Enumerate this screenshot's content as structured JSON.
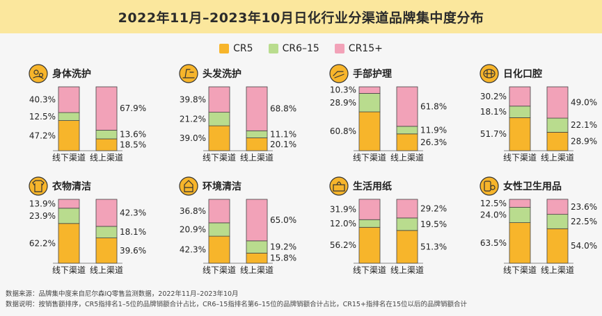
{
  "title": "2022年11月–2023年10月日化行业分渠道品牌集中度分布",
  "legend": [
    "CR5",
    "CR6–15",
    "CR15+"
  ],
  "colors": {
    "CR5": "#f7b52b",
    "CR6-15": "#b9dc8e",
    "CR15+": "#f2a2b8",
    "banner": "#fbe79d"
  },
  "chart_data": [
    {
      "type": "bar",
      "title": "身体洗护",
      "icon": "body-care-icon",
      "categories": [
        "线下渠道",
        "线上渠道"
      ],
      "series": [
        {
          "name": "CR5",
          "values": [
            47.2,
            18.5
          ]
        },
        {
          "name": "CR6–15",
          "values": [
            12.5,
            13.6
          ]
        },
        {
          "name": "CR15+",
          "values": [
            40.3,
            67.9
          ]
        }
      ]
    },
    {
      "type": "bar",
      "title": "头发洗护",
      "icon": "hair-care-icon",
      "categories": [
        "线下渠道",
        "线上渠道"
      ],
      "series": [
        {
          "name": "CR5",
          "values": [
            39.0,
            20.1
          ]
        },
        {
          "name": "CR6–15",
          "values": [
            21.2,
            11.1
          ]
        },
        {
          "name": "CR15+",
          "values": [
            39.8,
            68.8
          ]
        }
      ]
    },
    {
      "type": "bar",
      "title": "手部护理",
      "icon": "hand-care-icon",
      "categories": [
        "线下渠道",
        "线上渠道"
      ],
      "series": [
        {
          "name": "CR5",
          "values": [
            60.8,
            26.3
          ]
        },
        {
          "name": "CR6–15",
          "values": [
            28.9,
            11.9
          ]
        },
        {
          "name": "CR15+",
          "values": [
            10.3,
            61.8
          ]
        }
      ]
    },
    {
      "type": "bar",
      "title": "日化口腔",
      "icon": "oral-care-icon",
      "categories": [
        "线下渠道",
        "线上渠道"
      ],
      "series": [
        {
          "name": "CR5",
          "values": [
            51.7,
            28.9
          ]
        },
        {
          "name": "CR6–15",
          "values": [
            18.1,
            22.1
          ]
        },
        {
          "name": "CR15+",
          "values": [
            30.2,
            49.0
          ]
        }
      ]
    },
    {
      "type": "bar",
      "title": "衣物清洁",
      "icon": "laundry-icon",
      "categories": [
        "线下渠道",
        "线上渠道"
      ],
      "series": [
        {
          "name": "CR5",
          "values": [
            62.2,
            39.6
          ]
        },
        {
          "name": "CR6–15",
          "values": [
            23.9,
            18.1
          ]
        },
        {
          "name": "CR15+",
          "values": [
            13.9,
            42.3
          ]
        }
      ]
    },
    {
      "type": "bar",
      "title": "环境清洁",
      "icon": "home-cleaning-icon",
      "categories": [
        "线下渠道",
        "线上渠道"
      ],
      "series": [
        {
          "name": "CR5",
          "values": [
            42.3,
            15.8
          ]
        },
        {
          "name": "CR6–15",
          "values": [
            20.9,
            19.2
          ]
        },
        {
          "name": "CR15+",
          "values": [
            36.8,
            65.0
          ]
        }
      ]
    },
    {
      "type": "bar",
      "title": "生活用纸",
      "icon": "tissue-icon",
      "categories": [
        "线下渠道",
        "线上渠道"
      ],
      "series": [
        {
          "name": "CR5",
          "values": [
            56.2,
            51.3
          ]
        },
        {
          "name": "CR6–15",
          "values": [
            12.0,
            19.5
          ]
        },
        {
          "name": "CR15+",
          "values": [
            31.9,
            29.2
          ]
        }
      ]
    },
    {
      "type": "bar",
      "title": "女性卫生用品",
      "icon": "feminine-care-icon",
      "categories": [
        "线下渠道",
        "线上渠道"
      ],
      "series": [
        {
          "name": "CR5",
          "values": [
            63.5,
            54.0
          ]
        },
        {
          "name": "CR6–15",
          "values": [
            24.0,
            22.5
          ]
        },
        {
          "name": "CR15+",
          "values": [
            12.5,
            23.6
          ]
        }
      ]
    }
  ],
  "footer": {
    "source": "数据来源：品牌集中度来自尼尔森IQ零售监测数据，2022年11月–2023年10月",
    "note": "数据说明：按销售额排序，CR5指排名1–5位的品牌销额合计占比，CR6–15指排名第6–15位的品牌销额合计占比，CR15+指排名在15位以后的品牌销额合计"
  }
}
